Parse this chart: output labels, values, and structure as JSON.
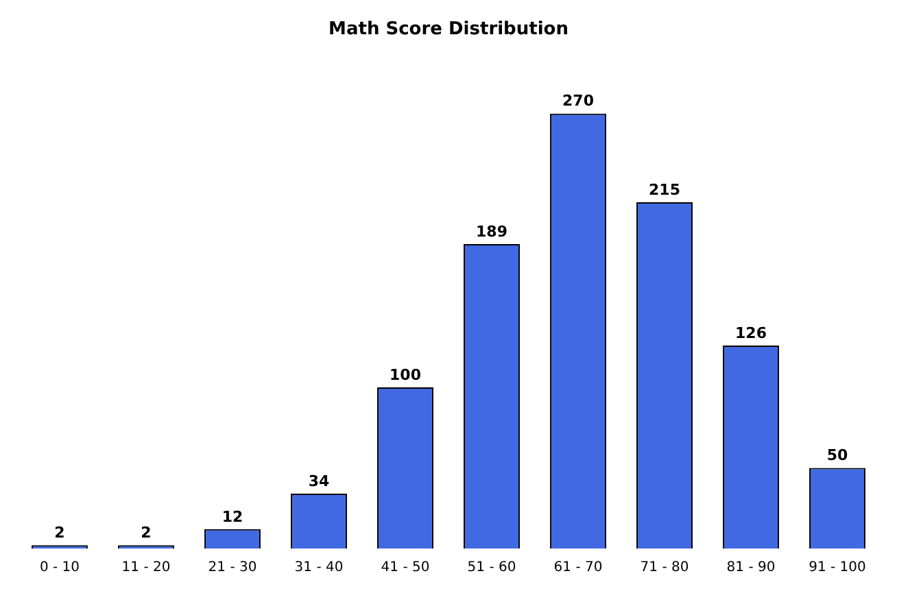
{
  "chart_data": {
    "type": "bar",
    "title": "Math Score Distribution",
    "categories": [
      "0 - 10",
      "11 - 20",
      "21 - 30",
      "31 - 40",
      "41 - 50",
      "51 - 60",
      "61 - 70",
      "71 - 80",
      "81 - 90",
      "91 - 100"
    ],
    "values": [
      2,
      2,
      12,
      34,
      100,
      189,
      270,
      215,
      126,
      50
    ],
    "color": "#4169e1",
    "data_labels": true,
    "grid": false,
    "legend": false
  }
}
